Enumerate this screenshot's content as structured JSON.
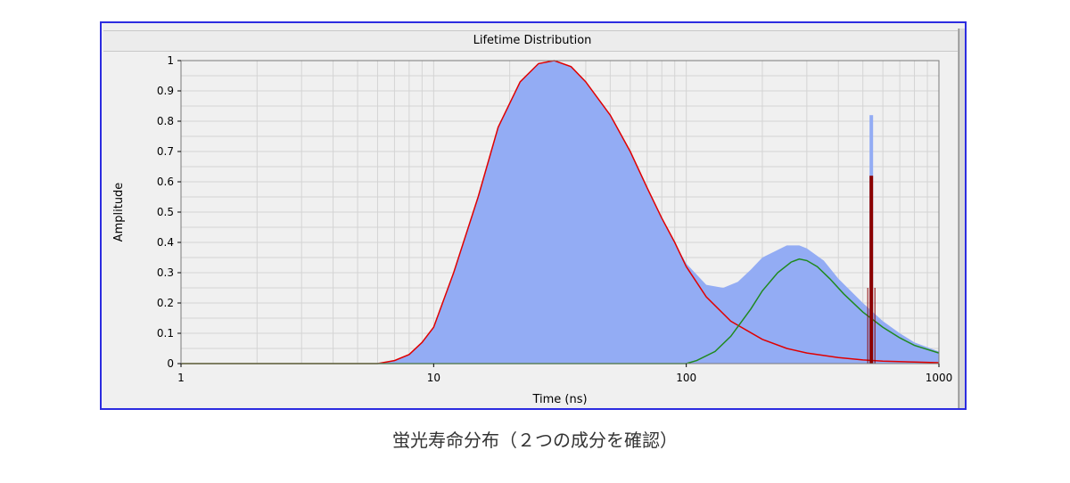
{
  "window": {
    "title": "Lifetime Distribution"
  },
  "caption": "蛍光寿命分布（２つの成分を確認）",
  "colors": {
    "histogram_fill": "#93acf4",
    "component1": "#e00000",
    "component2": "#1f8a1f",
    "spike": "#8b0000",
    "grid": "#d4d4d4",
    "frame_border": "#2c2ce0"
  },
  "chart_data": {
    "type": "area",
    "title": "Lifetime Distribution",
    "xlabel": "Time (ns)",
    "ylabel": "Amplitude",
    "xscale": "log",
    "xlim": [
      1,
      1000
    ],
    "ylim": [
      0,
      1
    ],
    "xticks": [
      "1",
      "10",
      "100",
      "1000"
    ],
    "yticks": [
      "0",
      "0.1",
      "0.2",
      "0.3",
      "0.4",
      "0.5",
      "0.6",
      "0.7",
      "0.8",
      "0.9",
      "1"
    ],
    "grid": true,
    "series": [
      {
        "kind": "filled-histogram",
        "color": "#93acf4",
        "x": [
          6,
          7,
          8,
          9,
          10,
          12,
          15,
          18,
          22,
          26,
          30,
          35,
          40,
          50,
          60,
          70,
          80,
          90,
          100,
          120,
          140,
          160,
          180,
          200,
          250,
          280,
          300,
          350,
          400,
          500,
          600,
          700,
          800,
          1000
        ],
        "y": [
          0.0,
          0.01,
          0.03,
          0.07,
          0.12,
          0.3,
          0.55,
          0.78,
          0.93,
          0.99,
          1.0,
          0.98,
          0.93,
          0.82,
          0.7,
          0.58,
          0.48,
          0.4,
          0.33,
          0.26,
          0.25,
          0.27,
          0.31,
          0.35,
          0.39,
          0.39,
          0.38,
          0.34,
          0.28,
          0.2,
          0.14,
          0.1,
          0.07,
          0.04
        ]
      },
      {
        "kind": "line",
        "color": "#e00000",
        "x": [
          1,
          6,
          7,
          8,
          9,
          10,
          12,
          15,
          18,
          22,
          26,
          30,
          35,
          40,
          50,
          60,
          70,
          80,
          90,
          100,
          120,
          150,
          200,
          250,
          300,
          400,
          500,
          600,
          800,
          1000
        ],
        "y": [
          0,
          0.0,
          0.01,
          0.03,
          0.07,
          0.12,
          0.3,
          0.55,
          0.78,
          0.93,
          0.99,
          1.0,
          0.98,
          0.93,
          0.82,
          0.7,
          0.58,
          0.48,
          0.4,
          0.32,
          0.22,
          0.14,
          0.08,
          0.05,
          0.035,
          0.02,
          0.012,
          0.008,
          0.005,
          0.003
        ]
      },
      {
        "kind": "line",
        "color": "#1f8a1f",
        "x": [
          1,
          100,
          110,
          130,
          150,
          180,
          200,
          230,
          260,
          280,
          300,
          330,
          370,
          420,
          500,
          600,
          700,
          800,
          1000
        ],
        "y": [
          0,
          0.0,
          0.01,
          0.04,
          0.09,
          0.18,
          0.24,
          0.3,
          0.335,
          0.345,
          0.34,
          0.32,
          0.28,
          0.23,
          0.17,
          0.12,
          0.085,
          0.06,
          0.035
        ]
      },
      {
        "kind": "spike",
        "color": "#8b0000",
        "x": 540,
        "y": 0.62
      },
      {
        "kind": "spike-fill",
        "color": "#93acf4",
        "x": 540,
        "y": 0.82
      }
    ]
  }
}
